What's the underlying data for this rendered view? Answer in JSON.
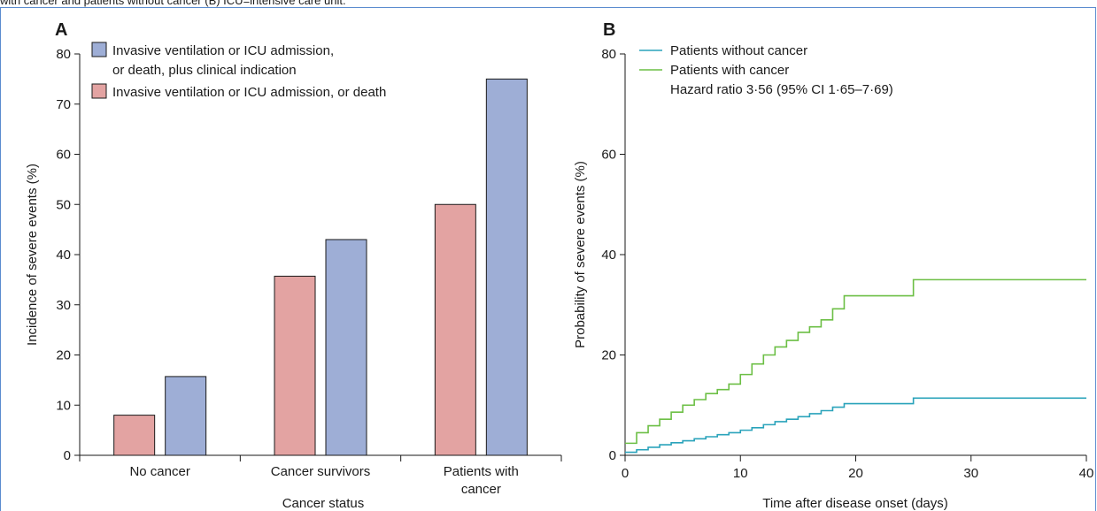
{
  "caption_fragment": "with cancer and patients without cancer (B) ICU=intensive care unit.",
  "colors": {
    "frame": "#5b8ccf",
    "bar_death": "#e3a3a2",
    "bar_clinical": "#9eaed6",
    "line_no_cancer": "#2aa3bb",
    "line_cancer": "#6cbf45"
  },
  "chart_data": [
    {
      "panel": "A",
      "type": "bar",
      "xlabel": "Cancer status",
      "ylabel": "Incidence of severe events (%)",
      "ylim": [
        0,
        80
      ],
      "yticks": [
        "0",
        "10",
        "20",
        "30",
        "40",
        "50",
        "60",
        "70",
        "80"
      ],
      "categories": [
        [
          "No cancer"
        ],
        [
          "Cancer survivors"
        ],
        [
          "Patients with",
          "cancer"
        ]
      ],
      "series": [
        {
          "name": "Invasive ventilation or ICU admission, or death",
          "values": [
            8,
            35.7,
            50
          ]
        },
        {
          "name_lines": [
            "Invasive ventilation or ICU admission,",
            "or death, plus clinical indication"
          ],
          "values": [
            15.7,
            43,
            75
          ]
        }
      ],
      "legend_position": "top-left"
    },
    {
      "panel": "B",
      "type": "line",
      "xlabel": "Time after disease onset (days)",
      "ylabel": "Probability of severe events (%)",
      "xlim": [
        0,
        40
      ],
      "ylim": [
        0,
        80
      ],
      "xticks": [
        "0",
        "10",
        "20",
        "30",
        "40"
      ],
      "yticks": [
        "0",
        "20",
        "40",
        "60",
        "80"
      ],
      "annotation": "Hazard ratio 3·56 (95% CI 1·65–7·69)",
      "legend_position": "top-left",
      "series": [
        {
          "name": "Patients without cancer",
          "x": [
            0,
            1,
            2,
            3,
            4,
            5,
            6,
            7,
            8,
            9,
            10,
            11,
            12,
            13,
            14,
            15,
            16,
            17,
            18,
            19,
            25,
            40
          ],
          "y": [
            0.6,
            1.1,
            1.6,
            2.1,
            2.5,
            2.9,
            3.3,
            3.7,
            4.1,
            4.5,
            5,
            5.5,
            6.1,
            6.7,
            7.2,
            7.7,
            8.3,
            8.9,
            9.6,
            10.3,
            11.4,
            11.4
          ]
        },
        {
          "name": "Patients with cancer",
          "x": [
            0,
            1,
            2,
            3,
            4,
            5,
            6,
            7,
            8,
            9,
            10,
            11,
            12,
            13,
            14,
            15,
            16,
            17,
            18,
            19,
            25,
            40
          ],
          "y": [
            2.4,
            4.5,
            5.9,
            7.2,
            8.6,
            10,
            11.1,
            12.3,
            13.1,
            14.2,
            16.1,
            18.2,
            20,
            21.6,
            22.9,
            24.5,
            25.6,
            27,
            29.2,
            31.8,
            35,
            35
          ]
        }
      ]
    }
  ]
}
